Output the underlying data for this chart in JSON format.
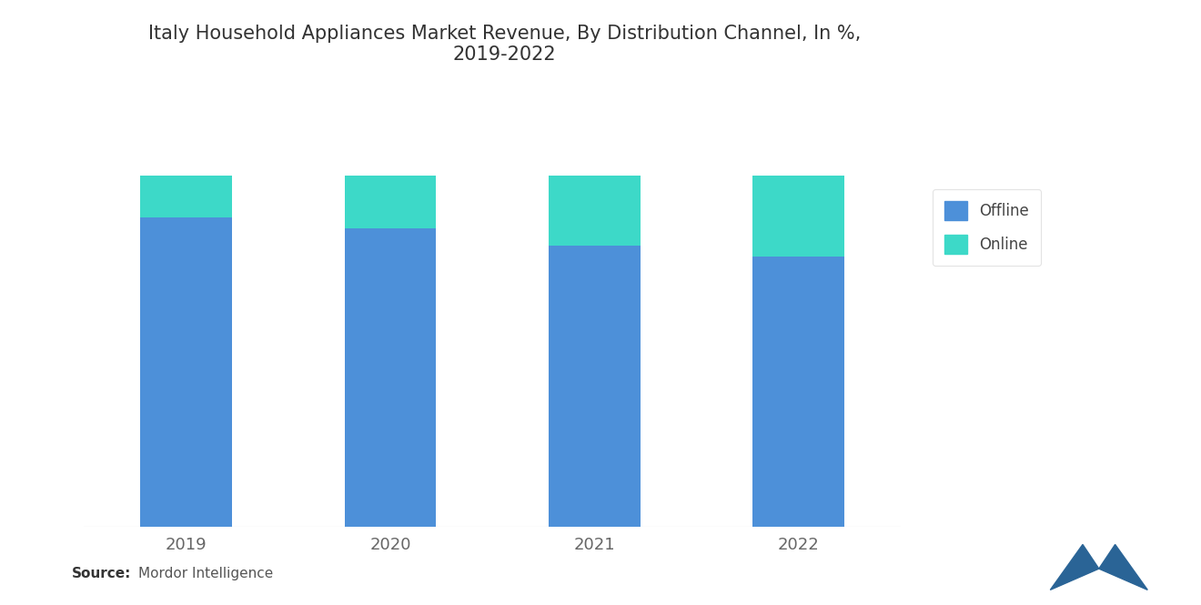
{
  "title": "Italy Household Appliances Market Revenue, By Distribution Channel, In %,\n2019-2022",
  "years": [
    "2019",
    "2020",
    "2021",
    "2022"
  ],
  "offline": [
    88,
    85,
    80,
    77
  ],
  "online": [
    12,
    15,
    20,
    23
  ],
  "offline_color": "#4d90d9",
  "online_color": "#3dd9c8",
  "background_color": "#ffffff",
  "source_bold": "Source:",
  "source_normal": "  Mordor Intelligence",
  "title_fontsize": 15,
  "tick_fontsize": 13,
  "legend_fontsize": 12,
  "bar_width": 0.45,
  "ylim": [
    0,
    100
  ]
}
